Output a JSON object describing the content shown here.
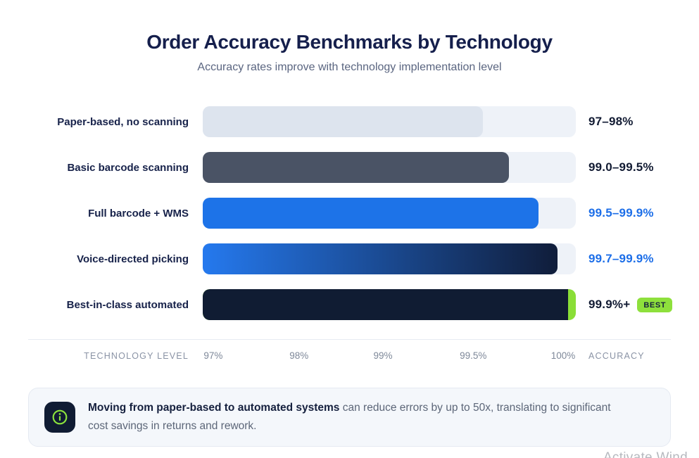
{
  "page": {
    "title": "Order Accuracy Benchmarks by Technology",
    "subtitle": "Accuracy rates improve with technology implementation level"
  },
  "chart": {
    "rows": [
      {
        "label": "Paper-based, no scanning",
        "value": "97–98%",
        "fill_pct": 75,
        "fill_color": "#dde4ee",
        "value_color": "#121b33"
      },
      {
        "label": "Basic barcode scanning",
        "value": "99.0–99.5%",
        "fill_pct": 82,
        "fill_color": "#4a5365",
        "value_color": "#121b33"
      },
      {
        "label": "Full barcode + WMS",
        "value": "99.5–99.9%",
        "fill_pct": 90,
        "fill_color": "#1d73e8",
        "value_color": "#1c6ee8"
      },
      {
        "label": "Voice-directed picking",
        "value": "99.7–99.9%",
        "fill_gradient": [
          "#2579ee",
          "#101d3a"
        ],
        "fill_pct": 95,
        "value_color": "#1c6ee8"
      },
      {
        "label": "Best-in-class automated",
        "value": "99.9%+",
        "fill_pct": 100,
        "fill_color": "#8ade37",
        "inner_color": "#101c33",
        "inner_pct": 98,
        "value_color": "#121b33",
        "badge": {
          "label": "BEST",
          "bg": "#8ee03c"
        }
      }
    ],
    "axis": {
      "left_label": "TECHNOLOGY LEVEL",
      "ticks": [
        {
          "label": "97%",
          "pos": 2.8
        },
        {
          "label": "98%",
          "pos": 25.8
        },
        {
          "label": "99%",
          "pos": 48.3
        },
        {
          "label": "99.5%",
          "pos": 72.5
        },
        {
          "label": "100%",
          "pos": 96.6
        }
      ],
      "right_label": "ACCURACY"
    }
  },
  "callout": {
    "icon": "info-icon",
    "bold": "Moving from paper-based to automated systems",
    "text": " can reduce errors by up to 50x, translating to significant cost savings in returns and rework."
  },
  "watermark": "Activate Wind",
  "colors": {
    "title": "#151f4c",
    "subtitle": "#5a6580",
    "bar_track": "#eef2f8",
    "accent_blue": "#1d73e8",
    "dark_navy": "#101c33",
    "lime_green": "#8ee03c",
    "callout_bg": "#f4f7fb",
    "axis_gray": "#8a93a5"
  },
  "chart_data": {
    "type": "bar",
    "orientation": "horizontal",
    "title": "Order Accuracy Benchmarks by Technology",
    "subtitle": "Accuracy rates improve with technology implementation level",
    "categories": [
      "Paper-based, no scanning",
      "Basic barcode scanning",
      "Full barcode + WMS",
      "Voice-directed picking",
      "Best-in-class automated"
    ],
    "value_labels": [
      "97–98%",
      "99.0–99.5%",
      "99.5–99.9%",
      "99.7–99.9%",
      "99.9%+"
    ],
    "accuracy_ranges": [
      [
        97,
        98
      ],
      [
        99.0,
        99.5
      ],
      [
        99.5,
        99.9
      ],
      [
        99.7,
        99.9
      ],
      [
        99.9,
        100
      ]
    ],
    "bar_fill_percent_of_track": [
      75,
      82,
      90,
      95,
      100
    ],
    "x_ticks": [
      "97%",
      "98%",
      "99%",
      "99.5%",
      "100%"
    ],
    "xlabel": "ACCURACY",
    "category_axis_label": "TECHNOLOGY LEVEL",
    "best_flag_category": "Best-in-class automated",
    "annotation": "Moving from paper-based to automated systems can reduce errors by up to 50x, translating to significant cost savings in returns and rework.",
    "legend": false,
    "grid": false
  }
}
